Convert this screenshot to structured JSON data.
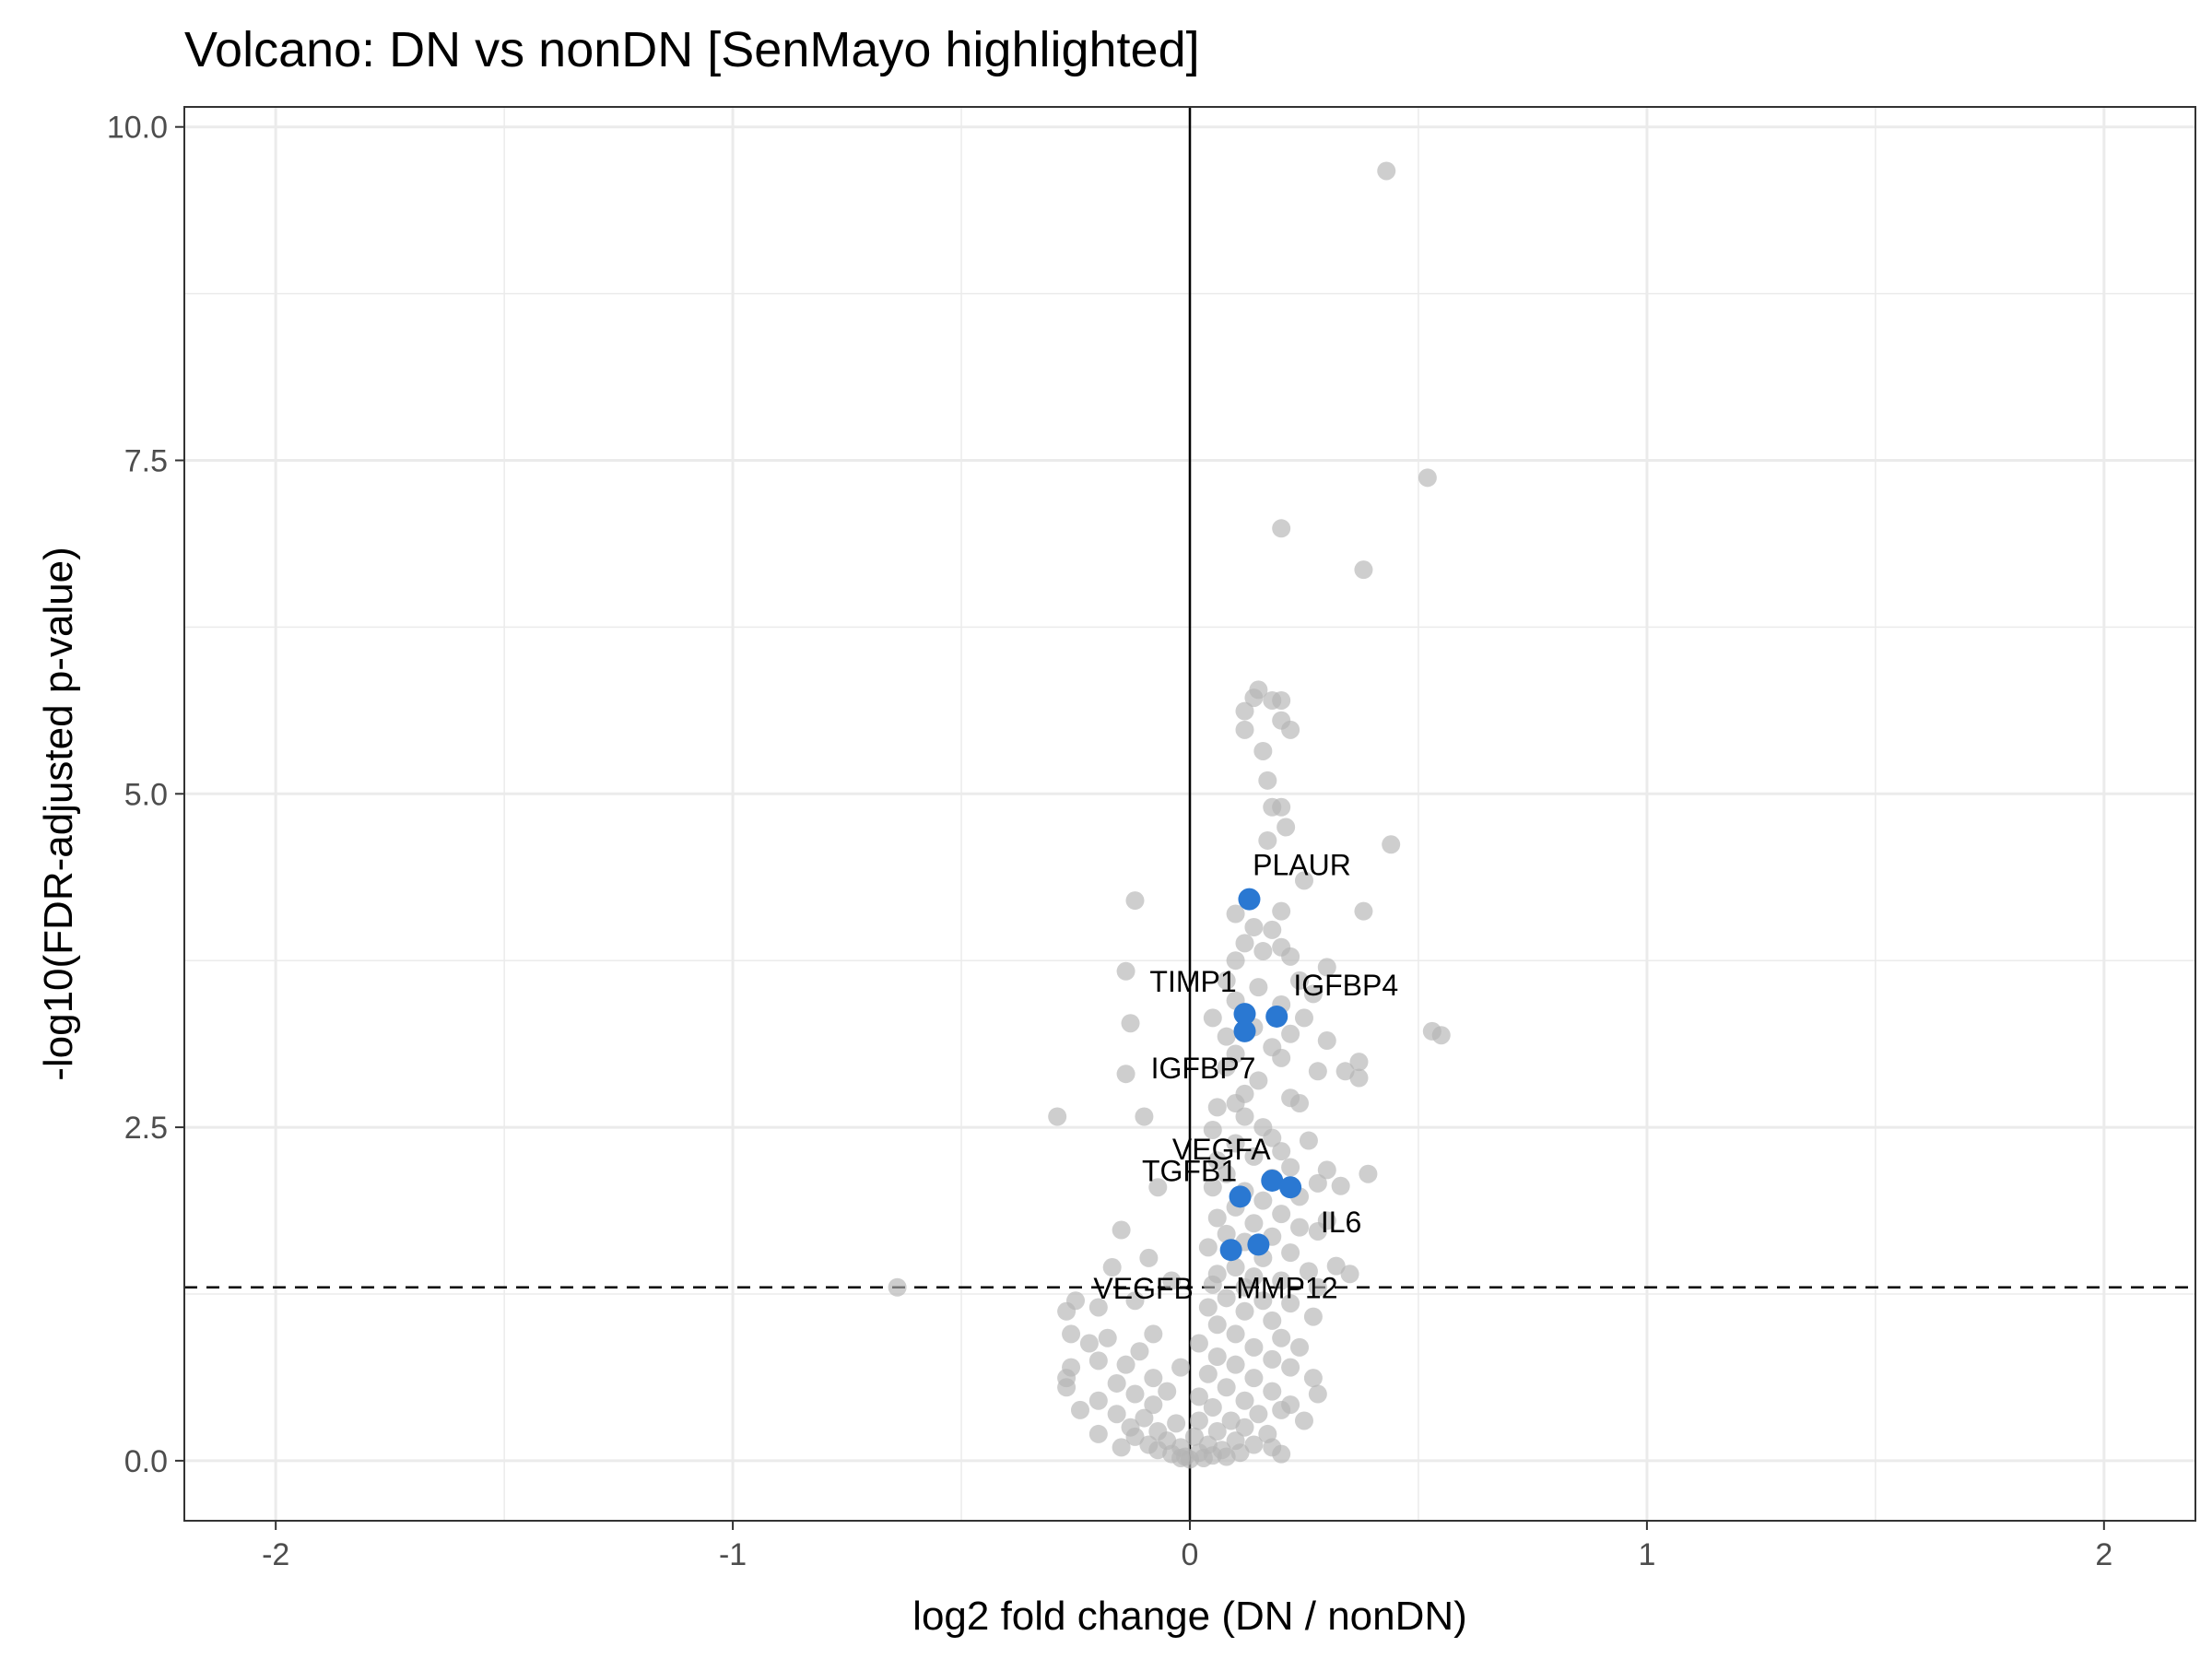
{
  "chart_data": {
    "type": "scatter",
    "title": "Volcano: DN vs nonDN [SenMayo highlighted]",
    "xlabel": "log2 fold change (DN / nonDN)",
    "ylabel": "-log10(FDR-adjusted p-value)",
    "xlim": [
      -2.2,
      2.2
    ],
    "ylim": [
      -0.45,
      10.15
    ],
    "x_ticks": [
      -2,
      -1,
      0,
      1,
      2
    ],
    "x_tick_labels": [
      "-2",
      "-1",
      "0",
      "1",
      "2"
    ],
    "y_ticks": [
      0,
      2.5,
      5,
      7.5,
      10
    ],
    "y_tick_labels": [
      "0.0",
      "2.5",
      "5.0",
      "7.5",
      "10.0"
    ],
    "grid": true,
    "vline_x": 0,
    "hline_y": 1.3,
    "colors": {
      "background_points": "#b3b3b3",
      "highlight_points": "#2a78d2",
      "gridline": "#ebebeb",
      "tick_text": "#4d4d4d"
    },
    "background_points": [
      [
        0.43,
        9.67
      ],
      [
        0.52,
        7.37
      ],
      [
        0.2,
        6.99
      ],
      [
        0.38,
        6.68
      ],
      [
        0.15,
        5.78
      ],
      [
        0.12,
        5.62
      ],
      [
        0.18,
        5.7
      ],
      [
        0.2,
        5.7
      ],
      [
        0.22,
        5.48
      ],
      [
        0.12,
        5.48
      ],
      [
        0.16,
        5.32
      ],
      [
        0.2,
        5.55
      ],
      [
        0.14,
        5.72
      ],
      [
        0.17,
        5.1
      ],
      [
        0.18,
        4.9
      ],
      [
        0.2,
        4.9
      ],
      [
        0.21,
        4.75
      ],
      [
        0.17,
        4.65
      ],
      [
        0.44,
        4.62
      ],
      [
        0.25,
        4.35
      ],
      [
        0.2,
        4.12
      ],
      [
        0.38,
        4.12
      ],
      [
        -0.12,
        4.2
      ],
      [
        0.1,
        4.1
      ],
      [
        0.14,
        4.0
      ],
      [
        0.18,
        3.98
      ],
      [
        0.12,
        3.88
      ],
      [
        0.16,
        3.82
      ],
      [
        0.2,
        3.85
      ],
      [
        0.1,
        3.75
      ],
      [
        0.22,
        3.78
      ],
      [
        0.3,
        3.7
      ],
      [
        0.08,
        3.6
      ],
      [
        0.15,
        3.55
      ],
      [
        0.24,
        3.6
      ],
      [
        0.27,
        3.5
      ],
      [
        -0.14,
        3.67
      ],
      [
        0.1,
        3.45
      ],
      [
        0.2,
        3.42
      ],
      [
        0.05,
        3.32
      ],
      [
        0.25,
        3.32
      ],
      [
        0.14,
        3.25
      ],
      [
        0.22,
        3.2
      ],
      [
        0.3,
        3.15
      ],
      [
        0.08,
        3.18
      ],
      [
        0.18,
        3.1
      ],
      [
        -0.13,
        3.28
      ],
      [
        0.53,
        3.22
      ],
      [
        0.55,
        3.19
      ],
      [
        0.1,
        3.05
      ],
      [
        0.2,
        3.02
      ],
      [
        0.08,
        2.95
      ],
      [
        0.28,
        2.92
      ],
      [
        0.37,
        2.99
      ],
      [
        0.34,
        2.92
      ],
      [
        0.37,
        2.87
      ],
      [
        -0.14,
        2.9
      ],
      [
        0.15,
        2.85
      ],
      [
        0.12,
        2.75
      ],
      [
        0.22,
        2.72
      ],
      [
        0.1,
        2.68
      ],
      [
        0.24,
        2.68
      ],
      [
        0.06,
        2.65
      ],
      [
        -0.29,
        2.58
      ],
      [
        -0.1,
        2.58
      ],
      [
        0.12,
        2.58
      ],
      [
        0.16,
        2.5
      ],
      [
        0.18,
        2.42
      ],
      [
        0.05,
        2.48
      ],
      [
        0.26,
        2.4
      ],
      [
        0.1,
        2.38
      ],
      [
        0.2,
        2.32
      ],
      [
        0.14,
        2.28
      ],
      [
        0.06,
        2.25
      ],
      [
        0.22,
        2.2
      ],
      [
        0.3,
        2.18
      ],
      [
        0.39,
        2.15
      ],
      [
        0.08,
        2.15
      ],
      [
        0.18,
        2.12
      ],
      [
        0.28,
        2.08
      ],
      [
        0.33,
        2.06
      ],
      [
        0.05,
        2.05
      ],
      [
        -0.07,
        2.05
      ],
      [
        0.12,
        2.02
      ],
      [
        0.24,
        1.98
      ],
      [
        0.16,
        1.95
      ],
      [
        0.1,
        1.9
      ],
      [
        0.2,
        1.85
      ],
      [
        0.3,
        1.8
      ],
      [
        0.06,
        1.82
      ],
      [
        0.14,
        1.78
      ],
      [
        0.24,
        1.75
      ],
      [
        0.28,
        1.72
      ],
      [
        -0.15,
        1.73
      ],
      [
        0.08,
        1.7
      ],
      [
        0.18,
        1.68
      ],
      [
        0.12,
        1.64
      ],
      [
        0.04,
        1.6
      ],
      [
        0.22,
        1.56
      ],
      [
        0.16,
        1.52
      ],
      [
        0.32,
        1.46
      ],
      [
        0.1,
        1.45
      ],
      [
        0.26,
        1.42
      ],
      [
        0.35,
        1.4
      ],
      [
        -0.09,
        1.52
      ],
      [
        -0.17,
        1.45
      ],
      [
        0.06,
        1.4
      ],
      [
        0.14,
        1.38
      ],
      [
        0.2,
        1.35
      ],
      [
        0.05,
        1.32
      ],
      [
        0.12,
        1.3
      ],
      [
        -0.64,
        1.3
      ],
      [
        -0.04,
        1.35
      ],
      [
        0.28,
        1.3
      ],
      [
        -0.25,
        1.2
      ],
      [
        -0.12,
        1.2
      ],
      [
        0.08,
        1.22
      ],
      [
        0.16,
        1.2
      ],
      [
        0.22,
        1.18
      ],
      [
        0.04,
        1.15
      ],
      [
        0.12,
        1.12
      ],
      [
        -0.27,
        1.12
      ],
      [
        -0.2,
        1.15
      ],
      [
        0.27,
        1.08
      ],
      [
        0.18,
        1.05
      ],
      [
        0.06,
        1.02
      ],
      [
        -0.26,
        0.95
      ],
      [
        -0.18,
        0.92
      ],
      [
        -0.08,
        0.95
      ],
      [
        0.1,
        0.95
      ],
      [
        0.2,
        0.92
      ],
      [
        -0.22,
        0.88
      ],
      [
        0.02,
        0.88
      ],
      [
        0.14,
        0.85
      ],
      [
        0.24,
        0.85
      ],
      [
        -0.11,
        0.82
      ],
      [
        0.06,
        0.78
      ],
      [
        0.18,
        0.76
      ],
      [
        -0.2,
        0.75
      ],
      [
        -0.14,
        0.72
      ],
      [
        0.1,
        0.72
      ],
      [
        -0.02,
        0.7
      ],
      [
        0.22,
        0.7
      ],
      [
        -0.26,
        0.7
      ],
      [
        0.04,
        0.65
      ],
      [
        0.14,
        0.62
      ],
      [
        -0.08,
        0.62
      ],
      [
        0.27,
        0.62
      ],
      [
        -0.27,
        0.62
      ],
      [
        -0.16,
        0.58
      ],
      [
        -0.27,
        0.55
      ],
      [
        0.08,
        0.55
      ],
      [
        0.18,
        0.52
      ],
      [
        -0.05,
        0.52
      ],
      [
        0.28,
        0.5
      ],
      [
        -0.12,
        0.5
      ],
      [
        0.02,
        0.48
      ],
      [
        0.12,
        0.45
      ],
      [
        -0.2,
        0.45
      ],
      [
        0.22,
        0.42
      ],
      [
        -0.24,
        0.38
      ],
      [
        0.2,
        0.38
      ],
      [
        -0.08,
        0.42
      ],
      [
        0.05,
        0.4
      ],
      [
        -0.16,
        0.35
      ],
      [
        0.15,
        0.35
      ],
      [
        -0.1,
        0.32
      ],
      [
        0.09,
        0.3
      ],
      [
        -0.03,
        0.28
      ],
      [
        0.02,
        0.3
      ],
      [
        -0.13,
        0.25
      ],
      [
        0.12,
        0.25
      ],
      [
        -0.07,
        0.22
      ],
      [
        0.06,
        0.22
      ],
      [
        0.17,
        0.2
      ],
      [
        -0.12,
        0.18
      ],
      [
        0.01,
        0.18
      ],
      [
        -0.05,
        0.15
      ],
      [
        0.1,
        0.15
      ],
      [
        -0.09,
        0.12
      ],
      [
        0.04,
        0.12
      ],
      [
        0.14,
        0.12
      ],
      [
        -0.02,
        0.1
      ],
      [
        0.07,
        0.08
      ],
      [
        -0.07,
        0.08
      ],
      [
        0.02,
        0.06
      ],
      [
        0.11,
        0.06
      ],
      [
        -0.04,
        0.05
      ],
      [
        0.05,
        0.04
      ],
      [
        -0.01,
        0.03
      ],
      [
        0.03,
        0.02
      ],
      [
        0.0,
        0.01
      ],
      [
        -0.02,
        0.02
      ],
      [
        0.08,
        0.03
      ],
      [
        0.18,
        0.1
      ],
      [
        -0.15,
        0.1
      ],
      [
        0.2,
        0.05
      ],
      [
        0.25,
        0.3
      ],
      [
        -0.2,
        0.2
      ]
    ],
    "highlighted": [
      {
        "gene": "PLAUR",
        "x": 0.13,
        "y": 4.21
      },
      {
        "gene": "TIMP1",
        "x": 0.12,
        "y": 3.35
      },
      {
        "gene": "IGFBP4",
        "x": 0.19,
        "y": 3.33
      },
      {
        "gene": "IGFBP7",
        "x": 0.12,
        "y": 3.22
      },
      {
        "gene": "VEGFA",
        "x": 0.18,
        "y": 2.1
      },
      {
        "gene": "IL6",
        "x": 0.22,
        "y": 2.05
      },
      {
        "gene": "TGFB1",
        "x": 0.11,
        "y": 1.98
      },
      {
        "gene": "VEGFB",
        "x": 0.09,
        "y": 1.58
      },
      {
        "gene": "MMP12",
        "x": 0.15,
        "y": 1.62
      }
    ]
  }
}
